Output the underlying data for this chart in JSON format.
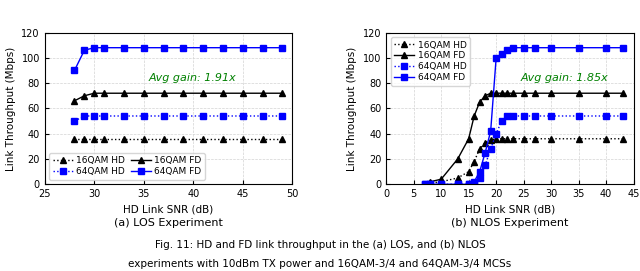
{
  "subplot_a": {
    "title": "(a) LOS Experiment",
    "xlabel": "HD Link SNR (dB)",
    "ylabel": "Link Throughput (Mbps)",
    "xlim": [
      25,
      50
    ],
    "ylim": [
      0,
      120
    ],
    "xticks": [
      25,
      30,
      35,
      40,
      45,
      50
    ],
    "yticks": [
      0,
      20,
      40,
      60,
      80,
      100,
      120
    ],
    "avg_gain_text": "Avg gain: 1.91x",
    "avg_gain_x": 35.5,
    "avg_gain_y": 82,
    "series": {
      "16qam_hd": {
        "x": [
          28,
          29,
          30,
          31,
          33,
          35,
          37,
          39,
          41,
          43,
          45,
          47,
          49
        ],
        "y": [
          36,
          36,
          36,
          36,
          36,
          36,
          36,
          36,
          36,
          36,
          36,
          36,
          36
        ],
        "color": "black",
        "linestyle": "dotted",
        "marker": "^",
        "markersize": 4,
        "label": "16QAM HD",
        "lw": 1.0
      },
      "16qam_fd": {
        "x": [
          28,
          29,
          30,
          31,
          33,
          35,
          37,
          39,
          41,
          43,
          45,
          47,
          49
        ],
        "y": [
          66,
          70,
          72,
          72,
          72,
          72,
          72,
          72,
          72,
          72,
          72,
          72,
          72
        ],
        "color": "black",
        "linestyle": "solid",
        "marker": "^",
        "markersize": 4,
        "label": "16QAM FD",
        "lw": 1.0
      },
      "64qam_hd": {
        "x": [
          28,
          29,
          30,
          31,
          33,
          35,
          37,
          39,
          41,
          43,
          45,
          47,
          49
        ],
        "y": [
          50,
          54,
          54,
          54,
          54,
          54,
          54,
          54,
          54,
          54,
          54,
          54,
          54
        ],
        "color": "blue",
        "linestyle": "dotted",
        "marker": "s",
        "markersize": 4,
        "label": "64QAM HD",
        "lw": 1.0
      },
      "64qam_fd": {
        "x": [
          28,
          29,
          30,
          31,
          33,
          35,
          37,
          39,
          41,
          43,
          45,
          47,
          49
        ],
        "y": [
          90,
          106,
          108,
          108,
          108,
          108,
          108,
          108,
          108,
          108,
          108,
          108,
          108
        ],
        "color": "blue",
        "linestyle": "solid",
        "marker": "s",
        "markersize": 4,
        "label": "64QAM FD",
        "lw": 1.0
      }
    },
    "legend_order": [
      "16qam_hd",
      "64qam_hd",
      "16qam_fd",
      "64qam_fd"
    ],
    "legend_ncol": 2
  },
  "subplot_b": {
    "title": "(b) NLOS Experiment",
    "xlabel": "HD Link SNR (dB)",
    "ylabel": "Link Throughput (Mbps)",
    "xlim": [
      0,
      45
    ],
    "ylim": [
      0,
      120
    ],
    "xticks": [
      0,
      5,
      10,
      15,
      20,
      25,
      30,
      35,
      40,
      45
    ],
    "yticks": [
      0,
      20,
      40,
      60,
      80,
      100,
      120
    ],
    "avg_gain_text": "Avg gain: 1.85x",
    "avg_gain_x": 24.5,
    "avg_gain_y": 82,
    "series": {
      "16qam_hd": {
        "x": [
          7,
          8,
          10,
          13,
          15,
          16,
          17,
          18,
          19,
          20,
          21,
          22,
          23,
          25,
          27,
          30,
          35,
          40,
          43
        ],
        "y": [
          0,
          1,
          2,
          5,
          10,
          18,
          28,
          33,
          35,
          36,
          36,
          36,
          36,
          36,
          36,
          36,
          36,
          36,
          36
        ],
        "color": "black",
        "linestyle": "dotted",
        "marker": "^",
        "markersize": 4,
        "label": "16QAM HD",
        "lw": 1.0
      },
      "16qam_fd": {
        "x": [
          7,
          8,
          10,
          13,
          15,
          16,
          17,
          18,
          19,
          20,
          21,
          22,
          23,
          25,
          27,
          30,
          35,
          40,
          43
        ],
        "y": [
          0,
          2,
          4,
          20,
          36,
          54,
          65,
          70,
          72,
          72,
          72,
          72,
          72,
          72,
          72,
          72,
          72,
          72,
          72
        ],
        "color": "black",
        "linestyle": "solid",
        "marker": "^",
        "markersize": 4,
        "label": "16QAM FD",
        "lw": 1.0
      },
      "64qam_hd": {
        "x": [
          7,
          8,
          10,
          13,
          15,
          16,
          17,
          18,
          19,
          20,
          21,
          22,
          23,
          25,
          27,
          30,
          35,
          40,
          43
        ],
        "y": [
          0,
          0,
          0,
          0,
          0,
          1,
          5,
          15,
          28,
          40,
          50,
          54,
          54,
          54,
          54,
          54,
          54,
          54,
          54
        ],
        "color": "blue",
        "linestyle": "dotted",
        "marker": "s",
        "markersize": 4,
        "label": "64QAM HD",
        "lw": 1.0
      },
      "64qam_fd": {
        "x": [
          7,
          8,
          10,
          13,
          15,
          16,
          17,
          18,
          19,
          20,
          21,
          22,
          23,
          25,
          27,
          30,
          35,
          40,
          43
        ],
        "y": [
          0,
          0,
          0,
          0,
          0,
          2,
          10,
          25,
          42,
          100,
          103,
          106,
          108,
          108,
          108,
          108,
          108,
          108,
          108
        ],
        "color": "blue",
        "linestyle": "solid",
        "marker": "s",
        "markersize": 4,
        "label": "64QAM FD",
        "lw": 1.0
      }
    },
    "legend_order": [
      "16qam_hd",
      "16qam_fd",
      "64qam_hd",
      "64qam_fd"
    ],
    "legend_ncol": 1
  },
  "caption_line1": "Fig. 11: HD and FD link throughput in the (a) LOS, and (b) NLOS",
  "caption_line2": "experiments with 10dBm TX power and 16QAM-3/4 and 64QAM-3/4 MCSs",
  "background_color": "#ffffff"
}
